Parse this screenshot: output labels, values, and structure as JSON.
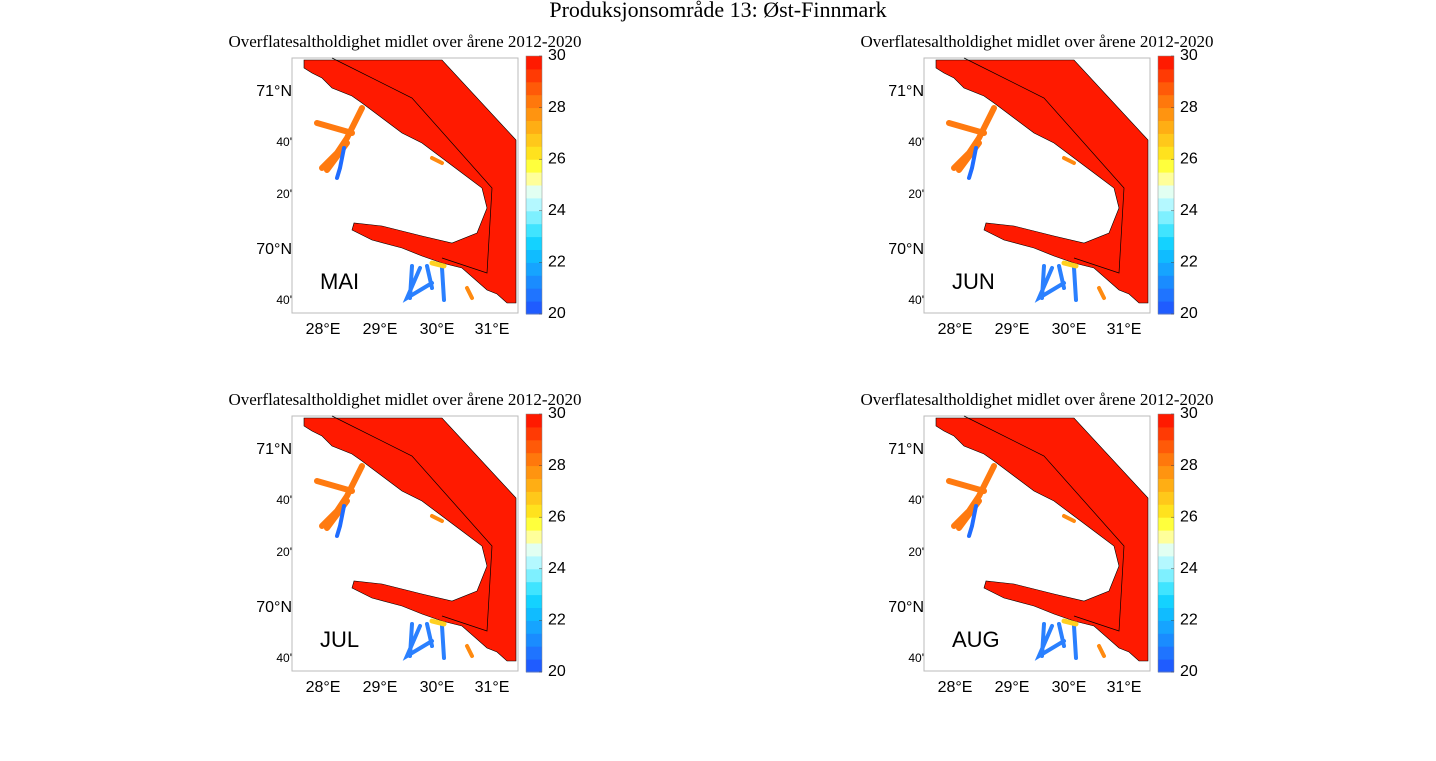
{
  "title": "Produksjonsområde 13: Øst-Finnmark",
  "axes": {
    "lat_labels": [
      "71°N",
      "40'",
      "20'",
      "70°N",
      "40'"
    ],
    "lon_labels": [
      "28°E",
      "29°E",
      "30°E",
      "31°E"
    ]
  },
  "colorbar": {
    "clim": [
      20,
      30
    ],
    "ticks": [
      20,
      22,
      24,
      26,
      28,
      30
    ],
    "colors": [
      "#1f5cff",
      "#1f74ff",
      "#1a8cff",
      "#16a4ff",
      "#10bcff",
      "#14d2ff",
      "#40e4ff",
      "#7ef0ff",
      "#b4f8ff",
      "#e2fff2",
      "#ffff9a",
      "#ffff3c",
      "#ffe21e",
      "#ffc81a",
      "#ffae14",
      "#ff9410",
      "#ff780c",
      "#ff5a08",
      "#ff3a04",
      "#ff1a00"
    ]
  },
  "panels": [
    {
      "subtitle": "Overflatesaltholdighet midlet over årene 2012-2020",
      "month": "MAI"
    },
    {
      "subtitle": "Overflatesaltholdighet midlet over årene 2012-2020",
      "month": "JUN"
    },
    {
      "subtitle": "Overflatesaltholdighet midlet over årene 2012-2020",
      "month": "JUL"
    },
    {
      "subtitle": "Overflatesaltholdighet midlet over årene 2012-2020",
      "month": "AUG"
    }
  ]
}
